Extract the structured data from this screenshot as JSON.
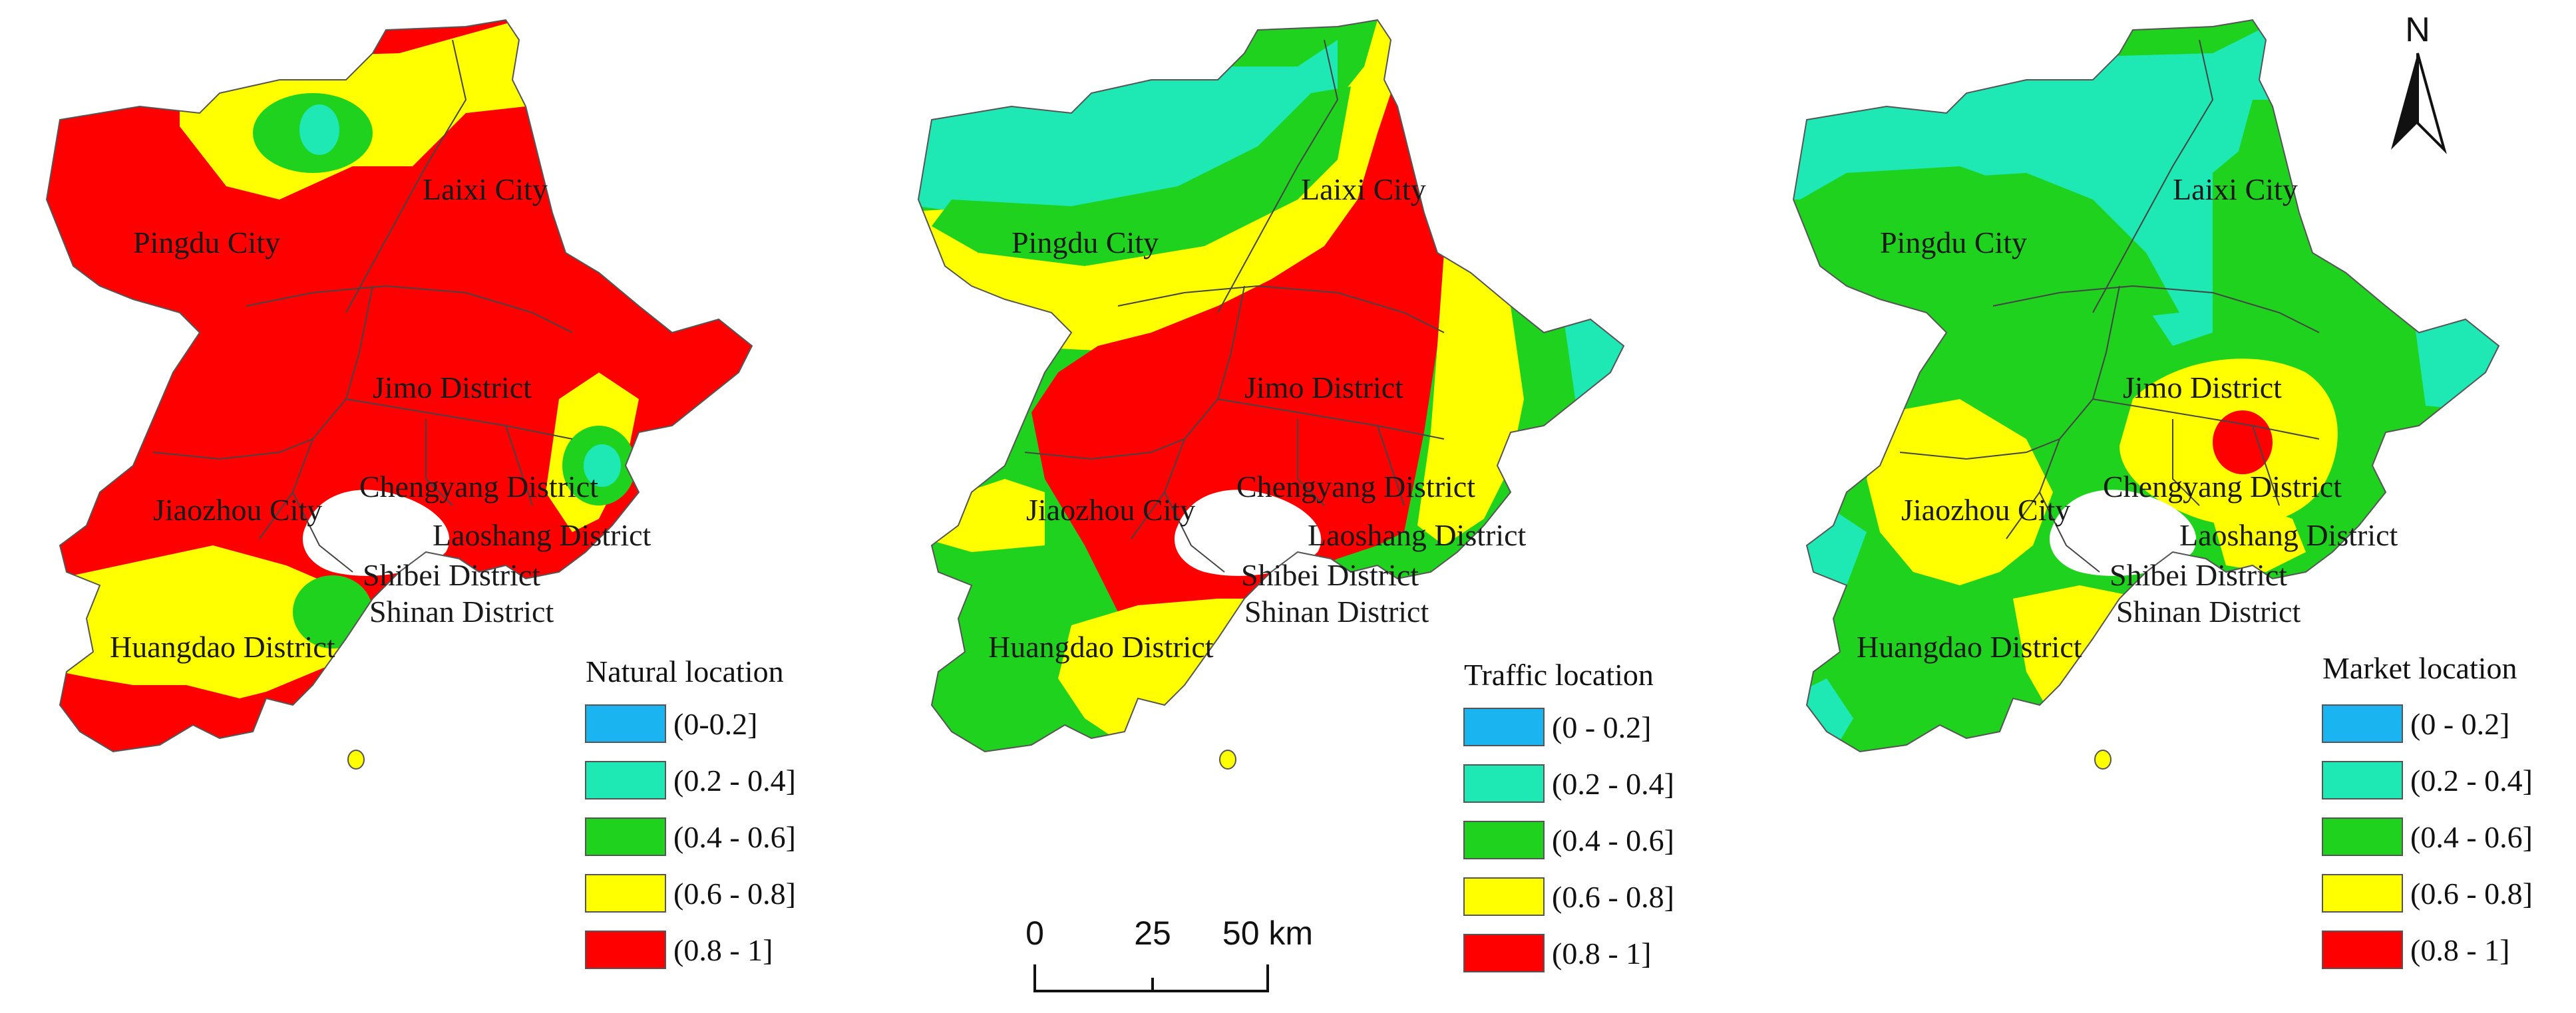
{
  "colors": {
    "c1": "#1ab4f0",
    "c2": "#1ee8b4",
    "c3": "#1ed21e",
    "c4": "#ffff00",
    "c5": "#ff0000"
  },
  "districts": {
    "pingdu": "Pingdu City",
    "laixi": "Laixi City",
    "jimo": "Jimo District",
    "jiaozhou": "Jiaozhou City",
    "chengyang": "Chengyang District",
    "laoshang": "Laoshang District",
    "shibei": "Shibei District",
    "shinan": "Shinan District",
    "huangdao": "Huangdao District"
  },
  "maps": [
    {
      "title": "Natural location",
      "legend": [
        "(0-0.2]",
        "(0.2 - 0.4]",
        "(0.4 - 0.6]",
        "(0.6 - 0.8]",
        "(0.8 - 1]"
      ]
    },
    {
      "title": "Traffic location",
      "legend": [
        "(0 - 0.2]",
        "(0.2 - 0.4]",
        "(0.4 - 0.6]",
        "(0.6 - 0.8]",
        "(0.8 - 1]"
      ]
    },
    {
      "title": "Market location",
      "legend": [
        "(0 - 0.2]",
        "(0.2 - 0.4]",
        "(0.4 - 0.6]",
        "(0.6 - 0.8]",
        "(0.8 - 1]"
      ]
    }
  ],
  "scale_bar": {
    "ticks": [
      "0",
      "25",
      "50 km"
    ]
  },
  "north_arrow": {
    "label": "N",
    "icon": "north-arrow-icon"
  }
}
